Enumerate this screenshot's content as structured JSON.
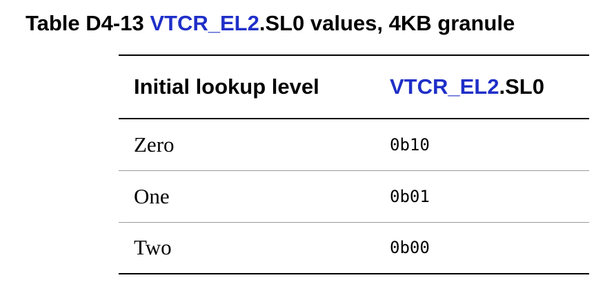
{
  "caption": {
    "prefix": "Table D4-13 ",
    "link": "VTCR_EL2",
    "suffix": ".SL0 values, 4KB granule"
  },
  "table": {
    "headers": {
      "col1": "Initial lookup level",
      "col2_link": "VTCR_EL2",
      "col2_suffix": ".SL0"
    },
    "rows": [
      {
        "level": "Zero",
        "value": "0b10"
      },
      {
        "level": "One",
        "value": "0b01"
      },
      {
        "level": "Two",
        "value": "0b00"
      }
    ]
  },
  "colors": {
    "link": "#1f2fc8",
    "text": "#000000",
    "rule": "#000000",
    "row_divider": "#9a9a9a"
  }
}
